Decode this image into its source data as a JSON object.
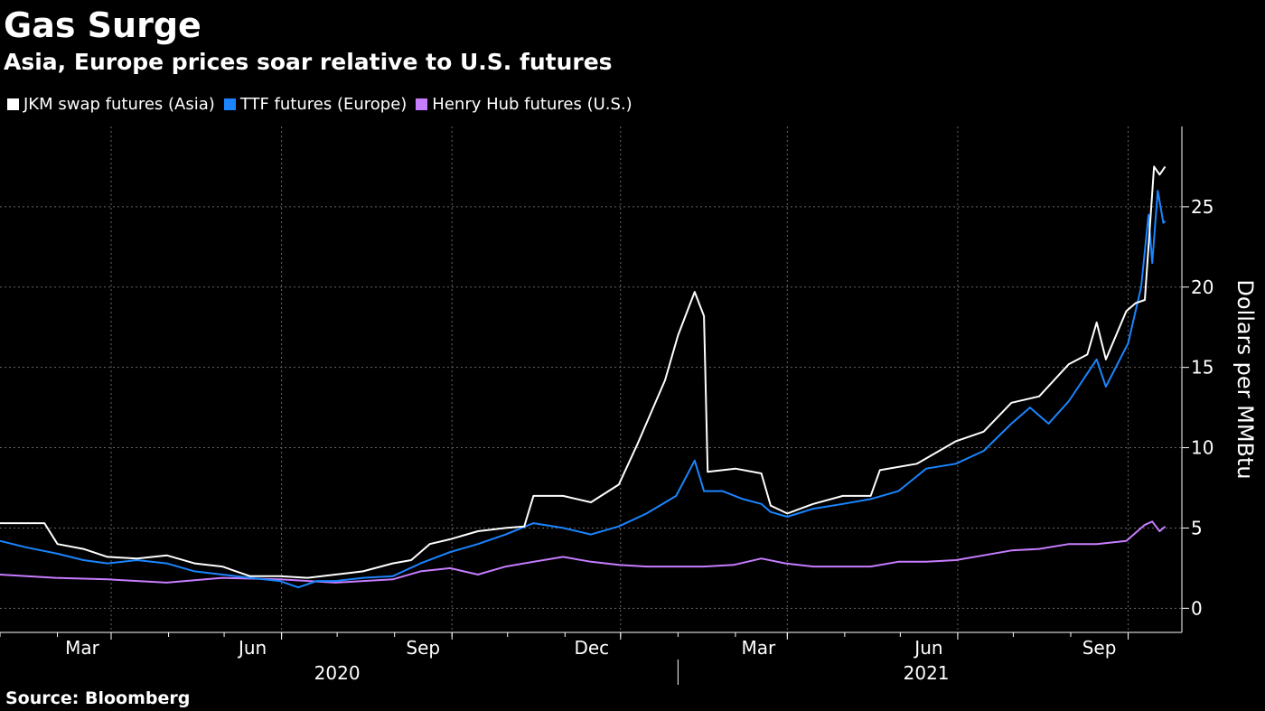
{
  "title": "Gas Surge",
  "subtitle": "Asia, Europe prices soar relative to U.S. futures",
  "source": "Source: Bloomberg",
  "colors": {
    "jkm": "#ffffff",
    "ttf": "#1a85ff",
    "hh": "#c77dff",
    "background": "#000000",
    "grid": "#666666"
  },
  "chart_data": {
    "type": "line",
    "ylabel": "Dollars per MMBtu",
    "ylim": [
      -1.5,
      30
    ],
    "yticks": [
      0,
      5,
      10,
      15,
      20,
      25
    ],
    "xlim": [
      "2020-01-01",
      "2021-09-30"
    ],
    "month_ticks": [
      {
        "date": "2020-03-01",
        "label": "Mar"
      },
      {
        "date": "2020-06-01",
        "label": "Jun"
      },
      {
        "date": "2020-09-01",
        "label": "Sep"
      },
      {
        "date": "2020-12-01",
        "label": "Dec"
      },
      {
        "date": "2021-03-01",
        "label": "Mar"
      },
      {
        "date": "2021-06-01",
        "label": "Jun"
      },
      {
        "date": "2021-09-01",
        "label": "Sep"
      }
    ],
    "year_labels": [
      {
        "date": "2020-07-01",
        "label": "2020"
      },
      {
        "date": "2021-05-15",
        "label": "2021"
      }
    ],
    "legend_position": "top-left",
    "grid": true,
    "series": [
      {
        "name": "JKM swap futures (Asia)",
        "key": "jkm",
        "points": [
          [
            "2020-01-01",
            5.3
          ],
          [
            "2020-01-25",
            5.3
          ],
          [
            "2020-02-01",
            4.0
          ],
          [
            "2020-02-15",
            3.7
          ],
          [
            "2020-02-28",
            3.2
          ],
          [
            "2020-03-15",
            3.1
          ],
          [
            "2020-03-31",
            3.3
          ],
          [
            "2020-04-15",
            2.8
          ],
          [
            "2020-04-30",
            2.6
          ],
          [
            "2020-05-15",
            2.0
          ],
          [
            "2020-05-31",
            2.0
          ],
          [
            "2020-06-15",
            1.9
          ],
          [
            "2020-06-30",
            2.1
          ],
          [
            "2020-07-15",
            2.3
          ],
          [
            "2020-07-31",
            2.8
          ],
          [
            "2020-08-10",
            3.0
          ],
          [
            "2020-08-20",
            4.0
          ],
          [
            "2020-08-31",
            4.3
          ],
          [
            "2020-09-15",
            4.8
          ],
          [
            "2020-09-30",
            5.0
          ],
          [
            "2020-10-10",
            5.1
          ],
          [
            "2020-10-15",
            7.0
          ],
          [
            "2020-10-31",
            7.0
          ],
          [
            "2020-11-15",
            6.6
          ],
          [
            "2020-11-30",
            7.7
          ],
          [
            "2020-12-10",
            10.2
          ],
          [
            "2020-12-25",
            14.2
          ],
          [
            "2021-01-01",
            17.0
          ],
          [
            "2021-01-10",
            19.7
          ],
          [
            "2021-01-15",
            18.2
          ],
          [
            "2021-01-17",
            8.5
          ],
          [
            "2021-02-01",
            8.7
          ],
          [
            "2021-02-15",
            8.4
          ],
          [
            "2021-02-20",
            6.4
          ],
          [
            "2021-03-01",
            5.9
          ],
          [
            "2021-03-15",
            6.5
          ],
          [
            "2021-03-31",
            7.0
          ],
          [
            "2021-04-15",
            7.0
          ],
          [
            "2021-04-20",
            8.6
          ],
          [
            "2021-05-10",
            9.0
          ],
          [
            "2021-05-31",
            10.4
          ],
          [
            "2021-06-15",
            11.0
          ],
          [
            "2021-06-30",
            12.8
          ],
          [
            "2021-07-15",
            13.2
          ],
          [
            "2021-07-31",
            15.2
          ],
          [
            "2021-08-10",
            15.8
          ],
          [
            "2021-08-15",
            17.8
          ],
          [
            "2021-08-20",
            15.5
          ],
          [
            "2021-08-31",
            18.5
          ],
          [
            "2021-09-05",
            19.0
          ],
          [
            "2021-09-10",
            19.2
          ],
          [
            "2021-09-15",
            27.5
          ],
          [
            "2021-09-18",
            27.0
          ],
          [
            "2021-09-21",
            27.5
          ]
        ]
      },
      {
        "name": "TTF futures (Europe)",
        "key": "ttf",
        "points": [
          [
            "2020-01-01",
            4.2
          ],
          [
            "2020-01-15",
            3.8
          ],
          [
            "2020-02-01",
            3.4
          ],
          [
            "2020-02-15",
            3.0
          ],
          [
            "2020-02-28",
            2.8
          ],
          [
            "2020-03-15",
            3.0
          ],
          [
            "2020-03-31",
            2.8
          ],
          [
            "2020-04-15",
            2.3
          ],
          [
            "2020-04-30",
            2.1
          ],
          [
            "2020-05-15",
            1.9
          ],
          [
            "2020-05-31",
            1.7
          ],
          [
            "2020-06-10",
            1.3
          ],
          [
            "2020-06-20",
            1.7
          ],
          [
            "2020-06-30",
            1.7
          ],
          [
            "2020-07-15",
            1.9
          ],
          [
            "2020-07-31",
            2.0
          ],
          [
            "2020-08-15",
            2.8
          ],
          [
            "2020-08-31",
            3.5
          ],
          [
            "2020-09-15",
            4.0
          ],
          [
            "2020-09-30",
            4.6
          ],
          [
            "2020-10-15",
            5.3
          ],
          [
            "2020-10-31",
            5.0
          ],
          [
            "2020-11-15",
            4.6
          ],
          [
            "2020-11-30",
            5.1
          ],
          [
            "2020-12-15",
            5.9
          ],
          [
            "2020-12-31",
            7.0
          ],
          [
            "2021-01-10",
            9.2
          ],
          [
            "2021-01-15",
            7.3
          ],
          [
            "2021-01-25",
            7.3
          ],
          [
            "2021-02-05",
            6.8
          ],
          [
            "2021-02-15",
            6.5
          ],
          [
            "2021-02-20",
            6.0
          ],
          [
            "2021-03-01",
            5.7
          ],
          [
            "2021-03-15",
            6.2
          ],
          [
            "2021-03-31",
            6.5
          ],
          [
            "2021-04-15",
            6.8
          ],
          [
            "2021-04-30",
            7.3
          ],
          [
            "2021-05-15",
            8.7
          ],
          [
            "2021-05-31",
            9.0
          ],
          [
            "2021-06-15",
            9.8
          ],
          [
            "2021-06-30",
            11.5
          ],
          [
            "2021-07-10",
            12.5
          ],
          [
            "2021-07-20",
            11.5
          ],
          [
            "2021-07-31",
            12.9
          ],
          [
            "2021-08-15",
            15.5
          ],
          [
            "2021-08-20",
            13.8
          ],
          [
            "2021-09-01",
            16.5
          ],
          [
            "2021-09-08",
            20.0
          ],
          [
            "2021-09-12",
            24.5
          ],
          [
            "2021-09-14",
            21.5
          ],
          [
            "2021-09-17",
            26.0
          ],
          [
            "2021-09-20",
            24.0
          ],
          [
            "2021-09-21",
            24.1
          ]
        ]
      },
      {
        "name": "Henry Hub futures (U.S.)",
        "key": "hh",
        "points": [
          [
            "2020-01-01",
            2.1
          ],
          [
            "2020-01-31",
            1.9
          ],
          [
            "2020-02-28",
            1.8
          ],
          [
            "2020-03-31",
            1.6
          ],
          [
            "2020-04-30",
            1.9
          ],
          [
            "2020-05-31",
            1.8
          ],
          [
            "2020-06-30",
            1.6
          ],
          [
            "2020-07-31",
            1.8
          ],
          [
            "2020-08-15",
            2.3
          ],
          [
            "2020-08-31",
            2.5
          ],
          [
            "2020-09-15",
            2.1
          ],
          [
            "2020-09-30",
            2.6
          ],
          [
            "2020-10-15",
            2.9
          ],
          [
            "2020-10-31",
            3.2
          ],
          [
            "2020-11-15",
            2.9
          ],
          [
            "2020-11-30",
            2.7
          ],
          [
            "2020-12-15",
            2.6
          ],
          [
            "2020-12-31",
            2.6
          ],
          [
            "2021-01-15",
            2.6
          ],
          [
            "2021-01-31",
            2.7
          ],
          [
            "2021-02-15",
            3.1
          ],
          [
            "2021-02-28",
            2.8
          ],
          [
            "2021-03-15",
            2.6
          ],
          [
            "2021-03-31",
            2.6
          ],
          [
            "2021-04-15",
            2.6
          ],
          [
            "2021-04-30",
            2.9
          ],
          [
            "2021-05-15",
            2.9
          ],
          [
            "2021-05-31",
            3.0
          ],
          [
            "2021-06-15",
            3.3
          ],
          [
            "2021-06-30",
            3.6
          ],
          [
            "2021-07-15",
            3.7
          ],
          [
            "2021-07-31",
            4.0
          ],
          [
            "2021-08-15",
            4.0
          ],
          [
            "2021-08-31",
            4.2
          ],
          [
            "2021-09-10",
            5.2
          ],
          [
            "2021-09-14",
            5.4
          ],
          [
            "2021-09-18",
            4.8
          ],
          [
            "2021-09-21",
            5.1
          ]
        ]
      }
    ]
  }
}
